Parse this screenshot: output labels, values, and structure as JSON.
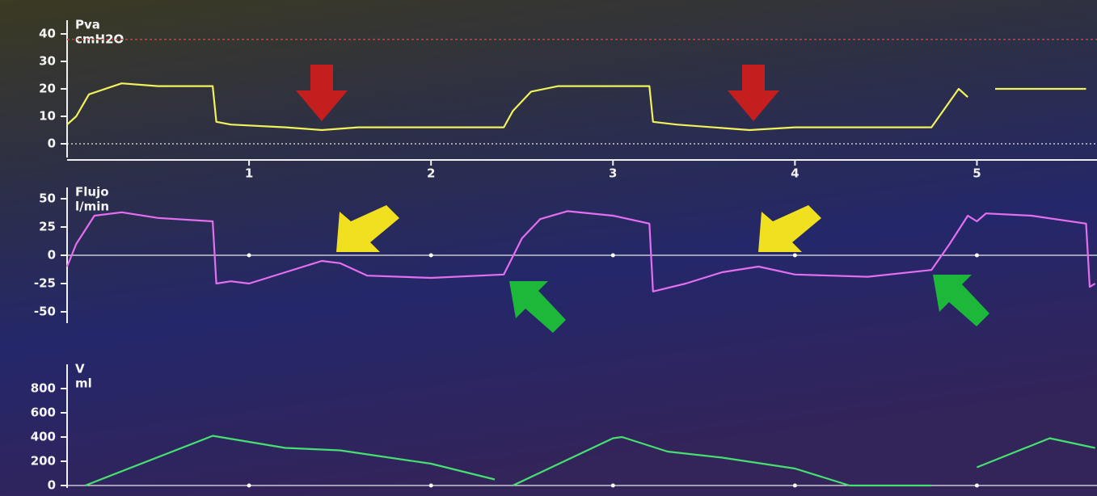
{
  "chart_data": [
    {
      "type": "line",
      "title": "Pva",
      "y_label": "cmH2O",
      "xlim": [
        0,
        5.66
      ],
      "xticks": [
        1,
        2,
        3,
        4,
        5
      ],
      "ylim": [
        -5,
        45
      ],
      "yticks": [
        0,
        10,
        20,
        30,
        40
      ],
      "zero_line": true,
      "reference_line": 38,
      "reference_color": "#d83a3a",
      "series": [
        {
          "name": "Pva",
          "color": "#f2f25a",
          "x": [
            0,
            0.05,
            0.12,
            0.3,
            0.5,
            0.8,
            0.82,
            0.9,
            1.2,
            1.4,
            1.6,
            2.0,
            2.4,
            2.45,
            2.55,
            2.7,
            3.0,
            3.2,
            3.22,
            3.35,
            3.75,
            4.0,
            4.4,
            4.75,
            4.9,
            4.95,
            5.05,
            5.1,
            5.4,
            5.6
          ],
          "values": [
            7,
            10,
            18,
            22,
            21,
            21,
            8,
            7,
            6,
            5,
            6,
            6,
            6,
            12,
            19,
            21,
            21,
            21,
            8,
            7,
            5,
            6,
            6,
            6,
            20,
            17,
            null,
            20,
            20,
            20
          ]
        }
      ]
    },
    {
      "type": "line",
      "title": "Flujo",
      "y_label": "l/min",
      "xlim": [
        0,
        5.66
      ],
      "ylim": [
        -60,
        60
      ],
      "yticks": [
        -50,
        -25,
        0,
        25,
        50
      ],
      "zero_line": true,
      "series": [
        {
          "name": "Flujo",
          "color": "#e46ef0",
          "x": [
            0,
            0.05,
            0.15,
            0.3,
            0.5,
            0.8,
            0.82,
            0.9,
            1.0,
            1.2,
            1.4,
            1.5,
            1.65,
            2.0,
            2.4,
            2.5,
            2.6,
            2.75,
            3.0,
            3.2,
            3.22,
            3.4,
            3.6,
            3.8,
            4.0,
            4.4,
            4.75,
            4.85,
            4.95,
            5.0,
            5.05,
            5.3,
            5.6,
            5.62,
            5.65
          ],
          "values": [
            -10,
            10,
            35,
            38,
            33,
            30,
            -25,
            -23,
            -25,
            -15,
            -5,
            -7,
            -18,
            -20,
            -17,
            15,
            32,
            39,
            35,
            28,
            -32,
            -25,
            -15,
            -10,
            -17,
            -19,
            -13,
            10,
            35,
            30,
            37,
            35,
            28,
            -28,
            -25
          ]
        }
      ]
    },
    {
      "type": "line",
      "title": "V",
      "y_label": "ml",
      "xlim": [
        0,
        5.66
      ],
      "ylim": [
        -20,
        1000
      ],
      "yticks": [
        0,
        200,
        400,
        600,
        800
      ],
      "zero_line": true,
      "series": [
        {
          "name": "V",
          "color": "#46e070",
          "x": [
            0.1,
            0.8,
            1.2,
            1.5,
            2.0,
            2.35,
            2.4,
            2.45,
            3.0,
            3.05,
            3.3,
            3.6,
            4.0,
            4.3,
            4.75,
            4.8,
            5.0,
            5.4,
            5.65
          ],
          "values": [
            0,
            410,
            310,
            290,
            180,
            50,
            null,
            0,
            390,
            400,
            280,
            230,
            140,
            0,
            0,
            null,
            150,
            390,
            310
          ]
        }
      ]
    }
  ]
}
